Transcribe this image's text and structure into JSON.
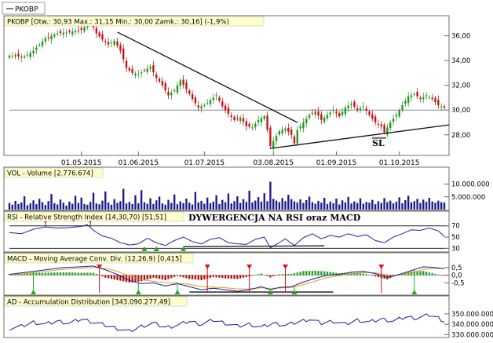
{
  "legend": {
    "symbol": "PKOBP"
  },
  "chart_data": {
    "type": "stock-chart",
    "price_panel": {
      "header": "PKOBP [Otw.: 30,93  Max.: 31,15  Min.: 30,00  Zamk.: 30,16] (-1,9%)",
      "y_ticks": [
        "36,00",
        "34,00",
        "32,00",
        "30,00",
        "28,00"
      ],
      "y_tick_values": [
        36,
        34,
        32,
        30,
        28
      ],
      "ylim": [
        26.4,
        37.5
      ],
      "x_ticks": [
        "01.05.2015",
        "01.06.2015",
        "01.07.2015",
        "03.08.2015",
        "01.09.2015",
        "01.10.2015"
      ],
      "x_tick_index": [
        24,
        43,
        65,
        88,
        109,
        130
      ],
      "candle_count": 146,
      "close_anchors": [
        [
          0,
          34.4
        ],
        [
          5,
          34.3
        ],
        [
          8,
          34.8
        ],
        [
          12,
          35.8
        ],
        [
          16,
          36.2
        ],
        [
          20,
          36.3
        ],
        [
          24,
          36.5
        ],
        [
          26,
          36.9
        ],
        [
          27,
          37.2
        ],
        [
          29,
          36.2
        ],
        [
          31,
          35.7
        ],
        [
          33,
          35.3
        ],
        [
          35,
          35.6
        ],
        [
          37,
          34.8
        ],
        [
          39,
          33.4
        ],
        [
          41,
          33.0
        ],
        [
          43,
          32.9
        ],
        [
          45,
          33.2
        ],
        [
          47,
          33.5
        ],
        [
          49,
          32.6
        ],
        [
          51,
          32.0
        ],
        [
          53,
          31.2
        ],
        [
          55,
          31.6
        ],
        [
          57,
          32.4
        ],
        [
          59,
          31.7
        ],
        [
          61,
          30.9
        ],
        [
          63,
          30.2
        ],
        [
          65,
          30.4
        ],
        [
          67,
          30.8
        ],
        [
          69,
          31.2
        ],
        [
          71,
          30.3
        ],
        [
          73,
          29.7
        ],
        [
          75,
          29.2
        ],
        [
          77,
          29.4
        ],
        [
          79,
          28.7
        ],
        [
          81,
          28.6
        ],
        [
          83,
          29.2
        ],
        [
          85,
          29.5
        ],
        [
          86,
          28.4
        ],
        [
          87,
          27.1
        ],
        [
          88,
          27.5
        ],
        [
          90,
          28.3
        ],
        [
          92,
          28.5
        ],
        [
          94,
          28.0
        ],
        [
          95,
          27.3
        ],
        [
          96,
          28.4
        ],
        [
          98,
          29.0
        ],
        [
          100,
          29.6
        ],
        [
          102,
          29.9
        ],
        [
          104,
          29.2
        ],
        [
          106,
          29.6
        ],
        [
          108,
          30.0
        ],
        [
          110,
          29.5
        ],
        [
          112,
          30.2
        ],
        [
          114,
          30.5
        ],
        [
          116,
          30.0
        ],
        [
          118,
          30.3
        ],
        [
          120,
          29.6
        ],
        [
          122,
          29.0
        ],
        [
          124,
          28.7
        ],
        [
          125,
          28.2
        ],
        [
          127,
          29.0
        ],
        [
          129,
          29.6
        ],
        [
          131,
          30.4
        ],
        [
          133,
          31.1
        ],
        [
          135,
          31.3
        ],
        [
          137,
          30.9
        ],
        [
          139,
          31.2
        ],
        [
          141,
          30.9
        ],
        [
          143,
          30.4
        ],
        [
          145,
          30.2
        ]
      ],
      "horizontal_level": 30.0,
      "downtrend_line": {
        "from": [
          36,
          36.3
        ],
        "to": [
          96,
          29.0
        ]
      },
      "uptrend_line": {
        "from": [
          87,
          26.9
        ],
        "to": [
          145,
          28.8
        ]
      },
      "sl_marker": {
        "label": "SL",
        "index": 123,
        "value": 27.75
      }
    },
    "volume_panel": {
      "header": "VOL - Volume [2.776.674]",
      "y_ticks": [
        "10.000.000",
        "5.000.000"
      ],
      "y_tick_values": [
        10000000,
        5000000
      ],
      "ylim": [
        0,
        12000000
      ],
      "values": [
        2600000,
        1900000,
        3400000,
        2200000,
        2800000,
        5200000,
        1700000,
        2400000,
        3600000,
        2100000,
        4200000,
        2900000,
        1800000,
        3300000,
        6100000,
        2500000,
        2000000,
        3900000,
        2700000,
        1600000,
        3100000,
        2300000,
        5400000,
        2600000,
        4700000,
        2200000,
        1900000,
        3000000,
        6600000,
        2400000,
        2100000,
        3500000,
        7100000,
        2800000,
        1900000,
        4100000,
        2600000,
        3300000,
        8100000,
        2400000,
        3000000,
        2200000,
        5600000,
        2500000,
        7600000,
        2900000,
        2300000,
        4400000,
        2200000,
        3600000,
        5100000,
        2400000,
        1900000,
        3800000,
        2600000,
        5900000,
        2100000,
        3200000,
        2500000,
        4300000,
        2700000,
        2000000,
        6900000,
        2800000,
        3400000,
        2300000,
        4700000,
        2500000,
        3100000,
        5600000,
        2200000,
        3800000,
        2900000,
        6300000,
        2400000,
        3300000,
        5200000,
        2600000,
        4100000,
        3000000,
        7400000,
        2800000,
        3500000,
        4900000,
        3100000,
        6400000,
        3300000,
        10900000,
        4200000,
        3500000,
        2900000,
        4500000,
        3300000,
        5800000,
        4100000,
        3200000,
        2800000,
        4000000,
        2600000,
        3700000,
        5100000,
        2900000,
        2300000,
        3400000,
        2700000,
        4600000,
        2200000,
        3100000,
        2500000,
        4300000,
        2000000,
        3600000,
        2800000,
        5000000,
        2400000,
        3200000,
        2600000,
        4400000,
        2300000,
        3000000,
        2700000,
        3800000,
        2100000,
        3300000,
        2600000,
        4500000,
        2900000,
        3500000,
        2400000,
        3100000,
        4800000,
        2500000,
        3700000,
        5400000,
        2800000,
        3300000,
        4200000,
        2600000,
        3900000,
        3000000,
        4600000,
        3200000,
        2700000,
        3500000,
        2900000,
        2776674
      ]
    },
    "rsi_panel": {
      "header": "RSI - Relative Strength Index (14,30,70) [51,51]",
      "annotation": "DYWERGENCJA NA RSI oraz MACD",
      "y_ticks": [
        "70",
        "50",
        "30"
      ],
      "y_tick_values": [
        70,
        50,
        30
      ],
      "ylim": [
        25,
        78
      ],
      "levels": [
        70,
        30
      ],
      "anchors": [
        [
          0,
          58
        ],
        [
          4,
          56
        ],
        [
          8,
          64
        ],
        [
          12,
          68
        ],
        [
          16,
          66
        ],
        [
          20,
          67
        ],
        [
          24,
          69
        ],
        [
          26,
          72
        ],
        [
          28,
          62
        ],
        [
          31,
          52
        ],
        [
          34,
          48
        ],
        [
          37,
          40
        ],
        [
          40,
          36
        ],
        [
          43,
          38
        ],
        [
          46,
          48
        ],
        [
          49,
          40
        ],
        [
          52,
          35
        ],
        [
          55,
          44
        ],
        [
          58,
          50
        ],
        [
          61,
          42
        ],
        [
          64,
          38
        ],
        [
          67,
          46
        ],
        [
          70,
          49
        ],
        [
          73,
          40
        ],
        [
          76,
          38
        ],
        [
          79,
          37
        ],
        [
          82,
          46
        ],
        [
          85,
          50
        ],
        [
          87,
          31
        ],
        [
          89,
          37
        ],
        [
          92,
          47
        ],
        [
          95,
          35
        ],
        [
          98,
          49
        ],
        [
          101,
          56
        ],
        [
          104,
          47
        ],
        [
          107,
          53
        ],
        [
          110,
          50
        ],
        [
          113,
          56
        ],
        [
          116,
          51
        ],
        [
          119,
          54
        ],
        [
          122,
          44
        ],
        [
          125,
          40
        ],
        [
          128,
          50
        ],
        [
          131,
          56
        ],
        [
          134,
          63
        ],
        [
          137,
          62
        ],
        [
          140,
          66
        ],
        [
          143,
          61
        ],
        [
          145,
          51.51
        ]
      ],
      "signals": [
        {
          "type": "sell",
          "index": 12
        },
        {
          "type": "sell",
          "index": 27
        },
        {
          "type": "buy",
          "index": 45
        },
        {
          "type": "buy",
          "index": 49
        },
        {
          "type": "buy",
          "index": 58
        }
      ],
      "divergence_line": {
        "from": [
          58,
          33
        ],
        "to": [
          105,
          34.5
        ]
      }
    },
    "macd_panel": {
      "header": "MACD - Moving Average Conv. Div. (12,26,9) [0,415]",
      "y_ticks": [
        "0,5",
        "0,0",
        "-0,5"
      ],
      "y_tick_values": [
        0.5,
        0,
        -0.5
      ],
      "ylim": [
        -1.25,
        0.8
      ],
      "macd_anchors": [
        [
          0,
          0.05
        ],
        [
          6,
          0.2
        ],
        [
          12,
          0.35
        ],
        [
          18,
          0.5
        ],
        [
          24,
          0.55
        ],
        [
          28,
          0.6
        ],
        [
          32,
          0.35
        ],
        [
          36,
          0.05
        ],
        [
          40,
          -0.35
        ],
        [
          44,
          -0.55
        ],
        [
          48,
          -0.5
        ],
        [
          52,
          -0.7
        ],
        [
          56,
          -0.55
        ],
        [
          60,
          -0.75
        ],
        [
          64,
          -0.95
        ],
        [
          68,
          -0.85
        ],
        [
          72,
          -0.95
        ],
        [
          76,
          -1.05
        ],
        [
          80,
          -0.95
        ],
        [
          84,
          -0.75
        ],
        [
          87,
          -0.95
        ],
        [
          90,
          -0.8
        ],
        [
          94,
          -0.75
        ],
        [
          98,
          -0.45
        ],
        [
          102,
          -0.2
        ],
        [
          106,
          0.0
        ],
        [
          110,
          0.05
        ],
        [
          114,
          0.2
        ],
        [
          118,
          0.25
        ],
        [
          122,
          0.1
        ],
        [
          126,
          -0.15
        ],
        [
          130,
          0.05
        ],
        [
          134,
          0.3
        ],
        [
          138,
          0.55
        ],
        [
          142,
          0.5
        ],
        [
          145,
          0.415
        ]
      ],
      "signal_anchors": [
        [
          0,
          0.0
        ],
        [
          6,
          0.12
        ],
        [
          12,
          0.25
        ],
        [
          18,
          0.38
        ],
        [
          24,
          0.45
        ],
        [
          28,
          0.5
        ],
        [
          32,
          0.45
        ],
        [
          36,
          0.25
        ],
        [
          40,
          -0.05
        ],
        [
          44,
          -0.3
        ],
        [
          48,
          -0.4
        ],
        [
          52,
          -0.5
        ],
        [
          56,
          -0.52
        ],
        [
          60,
          -0.6
        ],
        [
          64,
          -0.75
        ],
        [
          68,
          -0.78
        ],
        [
          72,
          -0.82
        ],
        [
          76,
          -0.9
        ],
        [
          80,
          -0.9
        ],
        [
          84,
          -0.82
        ],
        [
          87,
          -0.86
        ],
        [
          90,
          -0.84
        ],
        [
          94,
          -0.8
        ],
        [
          98,
          -0.62
        ],
        [
          102,
          -0.38
        ],
        [
          106,
          -0.15
        ],
        [
          110,
          -0.03
        ],
        [
          114,
          0.1
        ],
        [
          118,
          0.18
        ],
        [
          122,
          0.15
        ],
        [
          126,
          0.02
        ],
        [
          130,
          0.0
        ],
        [
          134,
          0.15
        ],
        [
          138,
          0.38
        ],
        [
          142,
          0.45
        ],
        [
          145,
          0.44
        ]
      ],
      "signals": [
        {
          "type": "buy",
          "index": 8
        },
        {
          "type": "sell",
          "index": 30
        },
        {
          "type": "buy",
          "index": 43
        },
        {
          "type": "buy",
          "index": 56
        },
        {
          "type": "sell",
          "index": 66
        },
        {
          "type": "sell",
          "index": 80
        },
        {
          "type": "buy",
          "index": 87
        },
        {
          "type": "sell",
          "index": 92
        },
        {
          "type": "buy",
          "index": 95
        },
        {
          "type": "sell",
          "index": 124
        },
        {
          "type": "buy",
          "index": 135
        }
      ],
      "divergence_line": {
        "from": [
          60,
          -1.1
        ],
        "to": [
          108,
          -1.1
        ]
      }
    },
    "ad_panel": {
      "header": "AD - Accumulation Distribution [343.090.277,49]",
      "y_ticks": [
        "350.000.000",
        "340.000.000",
        "330.000.000"
      ],
      "y_tick_values": [
        350000000,
        340000000,
        330000000
      ],
      "ylim": [
        328000000,
        356000000
      ],
      "anchors": [
        [
          0,
          336000000
        ],
        [
          4,
          338000000
        ],
        [
          8,
          342000000
        ],
        [
          12,
          340000000
        ],
        [
          16,
          343000000
        ],
        [
          20,
          341000000
        ],
        [
          24,
          345000000
        ],
        [
          28,
          342000000
        ],
        [
          32,
          339000000
        ],
        [
          36,
          336000000
        ],
        [
          40,
          333000000
        ],
        [
          44,
          338000000
        ],
        [
          48,
          341000000
        ],
        [
          52,
          337000000
        ],
        [
          56,
          339000000
        ],
        [
          60,
          343000000
        ],
        [
          64,
          340000000
        ],
        [
          68,
          344000000
        ],
        [
          72,
          341000000
        ],
        [
          76,
          338000000
        ],
        [
          80,
          340000000
        ],
        [
          84,
          337000000
        ],
        [
          88,
          341000000
        ],
        [
          92,
          339000000
        ],
        [
          96,
          342000000
        ],
        [
          100,
          345000000
        ],
        [
          104,
          341000000
        ],
        [
          108,
          343000000
        ],
        [
          112,
          340000000
        ],
        [
          116,
          344000000
        ],
        [
          120,
          342000000
        ],
        [
          124,
          345000000
        ],
        [
          128,
          343000000
        ],
        [
          132,
          347000000
        ],
        [
          136,
          346000000
        ],
        [
          140,
          349000000
        ],
        [
          143,
          346000000
        ],
        [
          145,
          343090277
        ]
      ]
    }
  }
}
